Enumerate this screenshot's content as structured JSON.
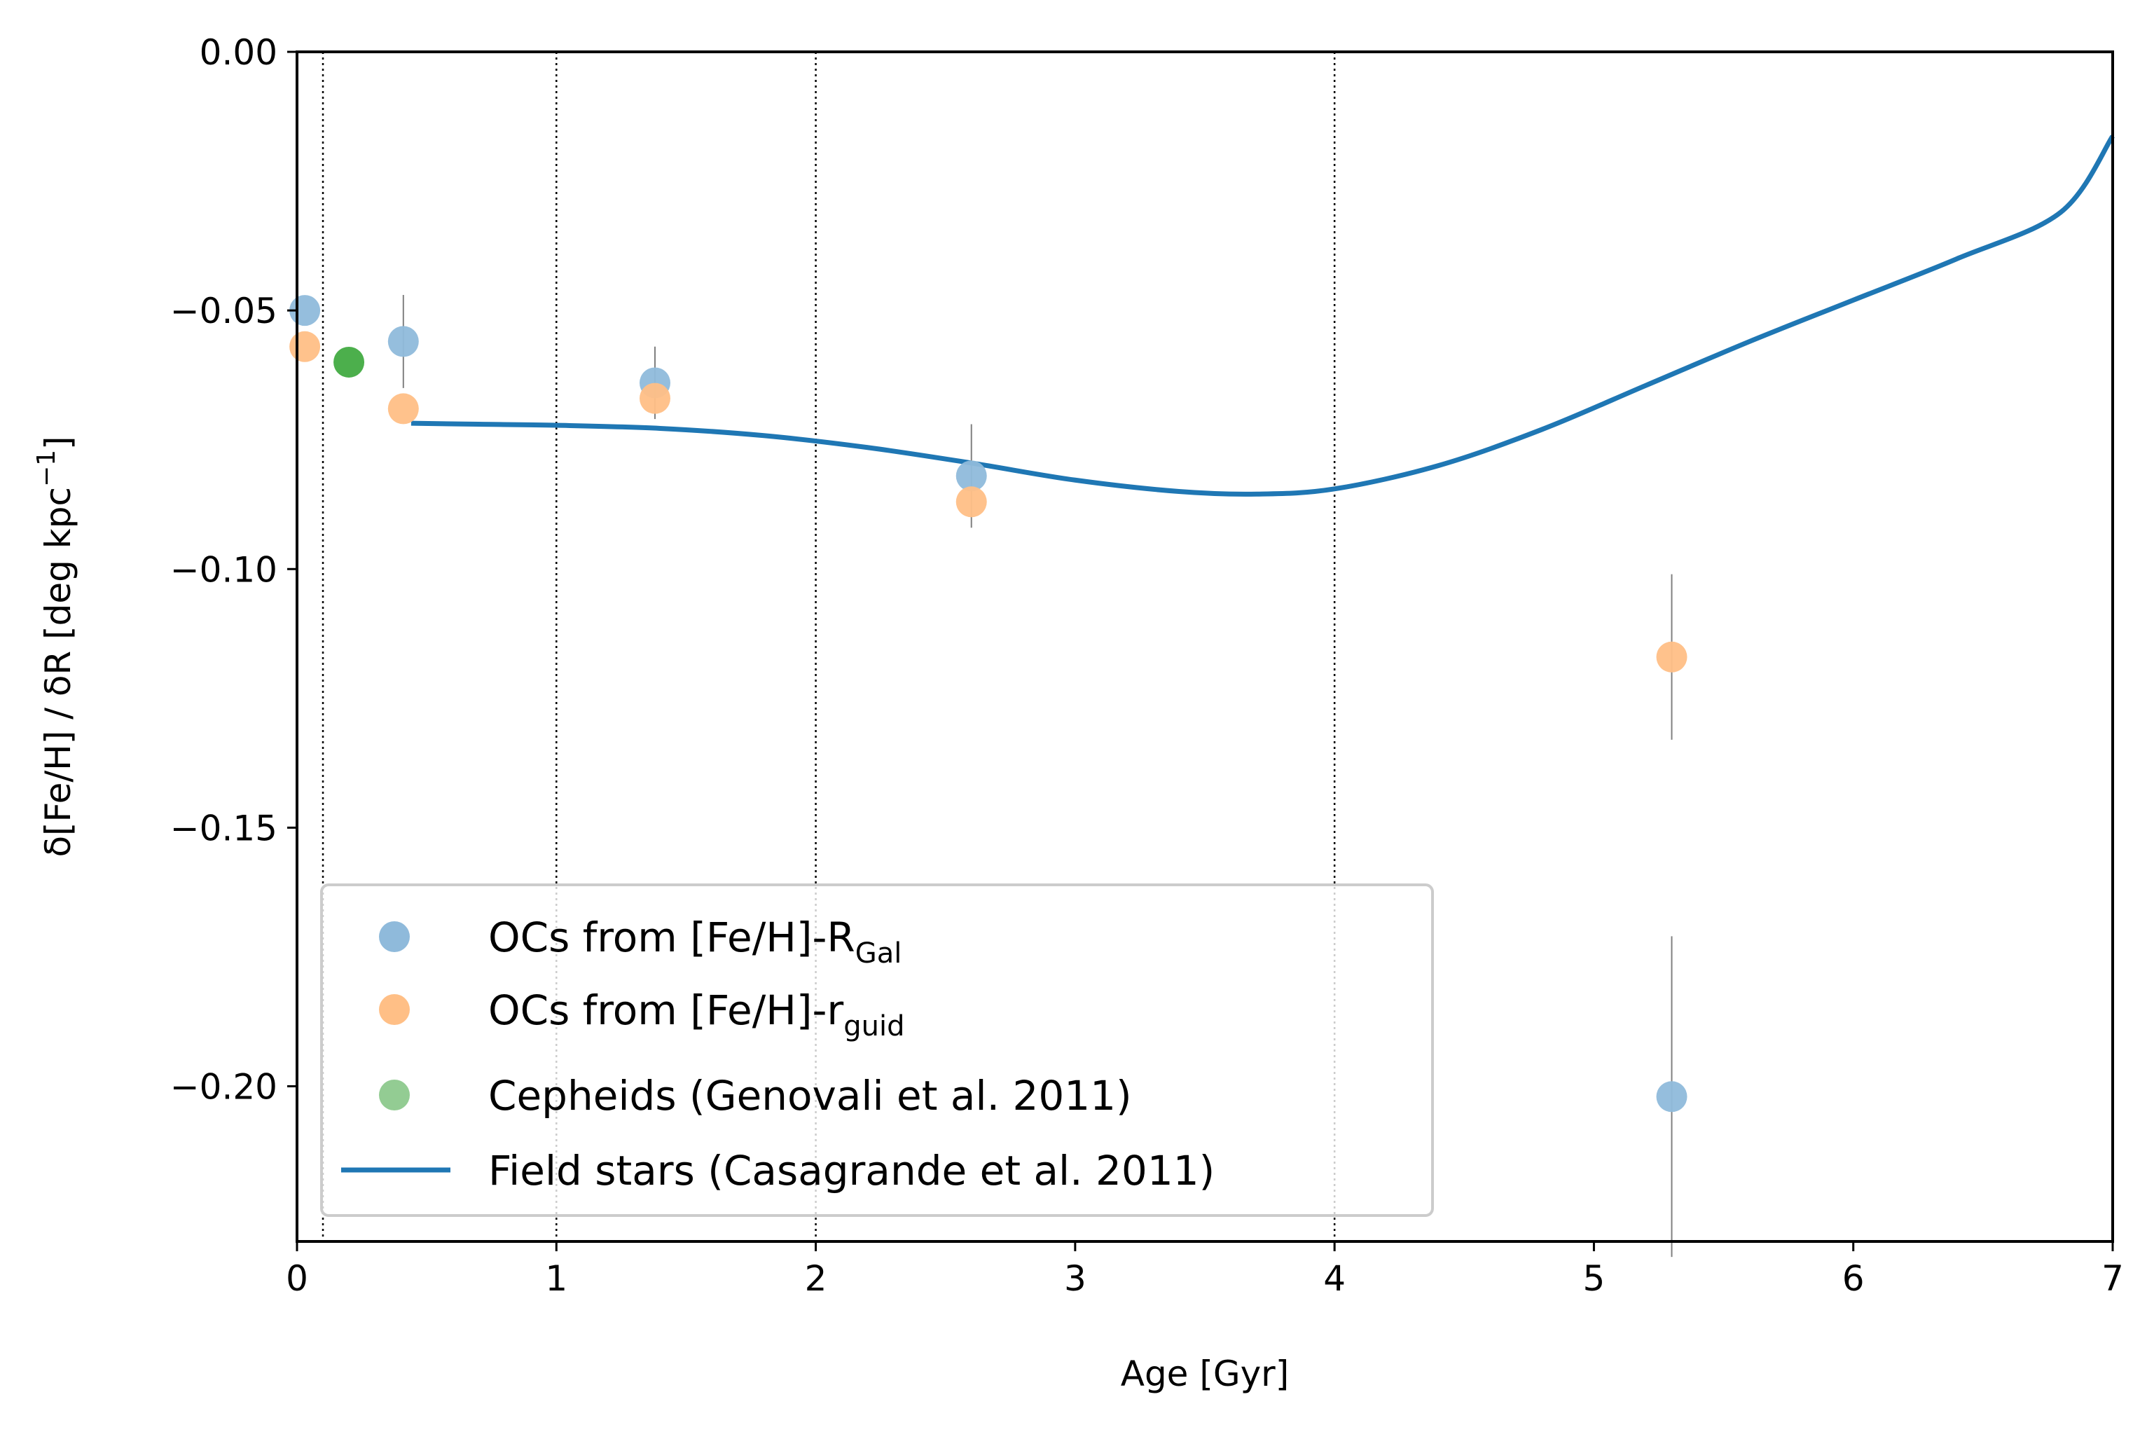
{
  "chart_data": {
    "type": "scatter",
    "xlabel": "Age [Gyr]",
    "ylabel": {
      "main": "δ[Fe/H] / δR [deg kpc",
      "sup": "−1",
      "close": "]"
    },
    "xlim": [
      0,
      7
    ],
    "ylim": [
      -0.23,
      0.0
    ],
    "x_ticks": [
      0,
      1,
      2,
      3,
      4,
      5,
      6,
      7
    ],
    "x_tick_labels": [
      "0",
      "1",
      "2",
      "3",
      "4",
      "5",
      "6",
      "7"
    ],
    "y_ticks": [
      0.0,
      -0.05,
      -0.1,
      -0.15,
      -0.2
    ],
    "y_tick_labels": [
      "0.00",
      "−0.05",
      "−0.10",
      "−0.15",
      "−0.20"
    ],
    "vertical_lines": [
      0.1,
      1,
      2,
      4
    ],
    "series": [
      {
        "name": "OCs from [Fe/H]-R_Gal",
        "label_main": "OCs from [Fe/H]-R",
        "label_sub": "Gal",
        "kind": "scatter",
        "color": "#8fbadb",
        "points": [
          {
            "x": 0.03,
            "y": -0.05,
            "err": 0.0
          },
          {
            "x": 0.41,
            "y": -0.056,
            "err": 0.009
          },
          {
            "x": 1.38,
            "y": -0.064,
            "err": 0.007
          },
          {
            "x": 2.6,
            "y": -0.082,
            "err": 0.01
          },
          {
            "x": 5.3,
            "y": -0.202,
            "err": 0.031
          }
        ]
      },
      {
        "name": "OCs from [Fe/H]-r_guid",
        "label_main": "OCs from [Fe/H]-r",
        "label_sub": "guid",
        "kind": "scatter",
        "color": "#ffbf86",
        "points": [
          {
            "x": 0.03,
            "y": -0.057,
            "err": 0.0
          },
          {
            "x": 0.41,
            "y": -0.069,
            "err": 0.0
          },
          {
            "x": 1.38,
            "y": -0.067,
            "err": 0.0
          },
          {
            "x": 2.6,
            "y": -0.087,
            "err": 0.0
          },
          {
            "x": 5.3,
            "y": -0.117,
            "err": 0.016
          }
        ]
      },
      {
        "name": "Cepheids (Genovali et al. 2011)",
        "label_main": "Cepheids (Genovali et al. 2011)",
        "label_sub": "",
        "kind": "scatter",
        "color": "#4caf4c",
        "legend_color": "#93cc93",
        "points": [
          {
            "x": 0.2,
            "y": -0.06,
            "err": 0.0
          }
        ]
      },
      {
        "name": "Field stars (Casagrande et al. 2011)",
        "label_main": "Field stars (Casagrande et al. 2011)",
        "label_sub": "",
        "kind": "line",
        "color": "#1f77b4",
        "x": [
          0.44,
          0.7,
          1.0,
          1.4,
          1.8,
          2.2,
          2.6,
          3.0,
          3.4,
          3.7,
          4.0,
          4.4,
          4.8,
          5.2,
          5.6,
          6.0,
          6.4,
          6.8,
          7.0
        ],
        "y": [
          -0.0718,
          -0.072,
          -0.0722,
          -0.0728,
          -0.0742,
          -0.0765,
          -0.0795,
          -0.0828,
          -0.085,
          -0.0855,
          -0.0845,
          -0.08,
          -0.073,
          -0.0645,
          -0.056,
          -0.048,
          -0.04,
          -0.031,
          -0.0163
        ]
      }
    ],
    "legend_position": "lower-left"
  }
}
